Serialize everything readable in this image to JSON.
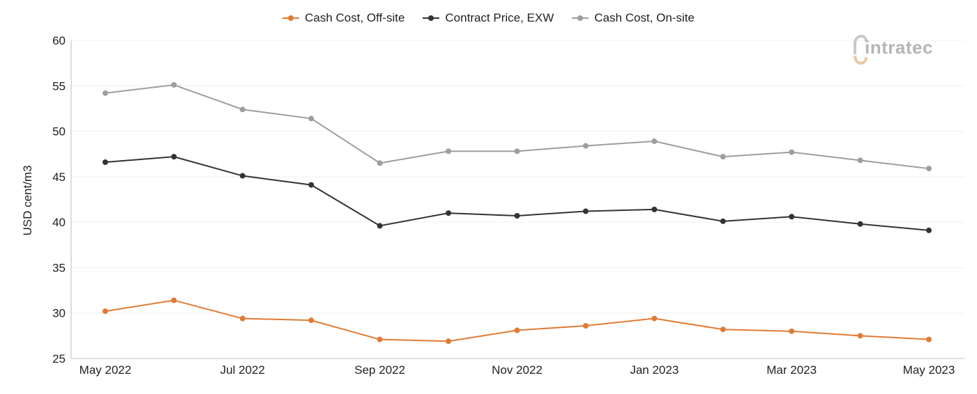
{
  "chart_data": {
    "type": "line",
    "title": "",
    "xlabel": "",
    "ylabel": "USD cent/m3",
    "ylim": [
      25,
      60
    ],
    "yticks": [
      25,
      30,
      35,
      40,
      45,
      50,
      55,
      60
    ],
    "x": [
      "May 2022",
      "Jun 2022",
      "Jul 2022",
      "Aug 2022",
      "Sep 2022",
      "Oct 2022",
      "Nov 2022",
      "Dec 2022",
      "Jan 2023",
      "Feb 2023",
      "Mar 2023",
      "Apr 2023",
      "May 2023"
    ],
    "x_tick_labels": [
      "May 2022",
      "",
      "Jul 2022",
      "",
      "Sep 2022",
      "",
      "Nov 2022",
      "",
      "Jan 2023",
      "",
      "Mar 2023",
      "",
      "May 2023"
    ],
    "series": [
      {
        "name": "Cash Cost, Off-site",
        "color": "#e07b33",
        "values": [
          30.2,
          31.4,
          29.4,
          29.2,
          27.1,
          26.9,
          28.1,
          28.6,
          29.4,
          28.2,
          28.0,
          27.5,
          27.1
        ]
      },
      {
        "name": "Contract Price, EXW",
        "color": "#333333",
        "values": [
          46.6,
          47.2,
          45.1,
          44.1,
          39.6,
          41.0,
          40.7,
          41.2,
          41.4,
          40.1,
          40.6,
          39.8,
          39.1
        ]
      },
      {
        "name": "Cash Cost, On-site",
        "color": "#9e9e9e",
        "values": [
          54.2,
          55.1,
          52.4,
          51.4,
          46.5,
          47.8,
          47.8,
          48.4,
          48.9,
          47.2,
          47.7,
          46.8,
          45.9
        ]
      }
    ],
    "legend_position": "top-center",
    "grid": true
  },
  "logo": {
    "text": "intratec",
    "icon": "intratec-logo"
  }
}
